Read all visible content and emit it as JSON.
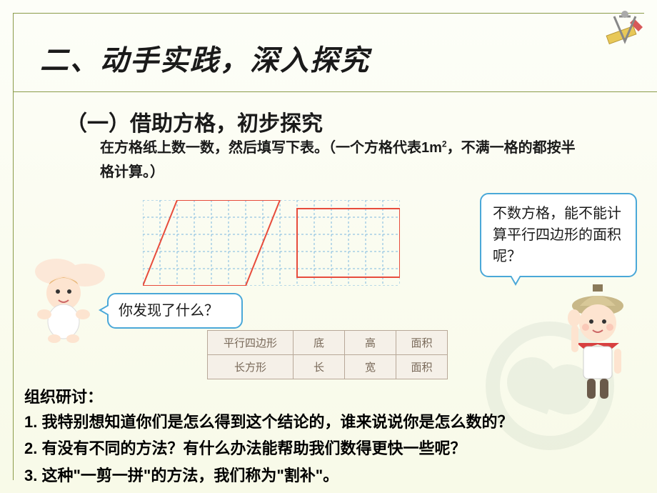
{
  "title": "二、动手实践，深入探究",
  "subtitle": "（一）借助方格，初步探究",
  "instruction_part1": "在方格纸上数一数，然后填写下表。（一个方格代表1m",
  "instruction_sup": "2",
  "instruction_part2": "，不满一格的都按半格计算。）",
  "bubble_left": "你发现了什么？",
  "bubble_right": "不数方格，能不能计算平行四边形的面积呢？",
  "discuss_label": "组织研讨：",
  "points": [
    "1. 我特别想知道你们是怎么得到这个结论的，谁来说说你是怎么数的？",
    "2. 有没有不同的方法？有什么办法能帮助我们数得更快一些呢？",
    "3. 这种\"一剪一拼\"的方法，我们称为\"割补\"。"
  ],
  "table": {
    "rows": [
      {
        "head": "平行四边形",
        "cells": [
          "底",
          "高",
          "面积"
        ]
      },
      {
        "head": "长方形",
        "cells": [
          "长",
          "宽",
          "面积"
        ]
      }
    ]
  },
  "grid": {
    "cols": 15,
    "rows": 5,
    "cell": 24,
    "grid_color": "#7bb8e0",
    "shape_color": "#e74c3c",
    "shape_width": 2,
    "parallelogram": [
      [
        2,
        0
      ],
      [
        8,
        0
      ],
      [
        6,
        5
      ],
      [
        0,
        5
      ]
    ],
    "rectangle": [
      [
        9,
        0.5
      ],
      [
        15,
        0.5
      ],
      [
        15,
        4.5
      ],
      [
        9,
        4.5
      ]
    ]
  }
}
